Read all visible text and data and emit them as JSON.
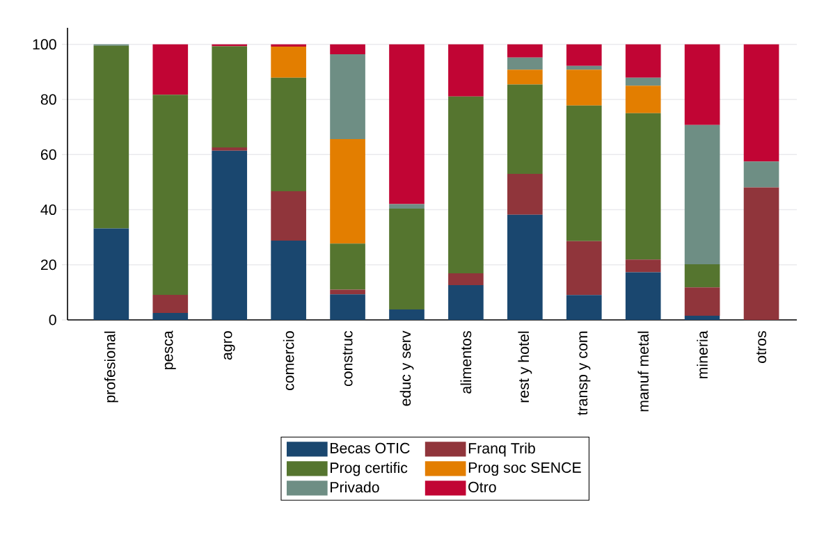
{
  "chart_data": {
    "type": "bar",
    "stacked": true,
    "categories": [
      "profesional",
      "pesca",
      "agro",
      "comercio",
      "construc",
      "educ y serv",
      "alimentos",
      "rest y hotel",
      "transp y com",
      "manuf metal",
      "mineria",
      "otros"
    ],
    "series": [
      {
        "name": "Becas OTIC",
        "color": "#1a476f",
        "values": [
          33.2,
          2.5,
          61.4,
          28.8,
          9.3,
          3.8,
          12.6,
          38.2,
          9.0,
          17.3,
          1.5,
          0
        ]
      },
      {
        "name": "Franq Trib",
        "color": "#90353b",
        "values": [
          0,
          6.6,
          1.2,
          17.9,
          1.7,
          0,
          4.3,
          14.8,
          19.6,
          4.6,
          10.3,
          48.1
        ]
      },
      {
        "name": "Prog certific",
        "color": "#55752f",
        "values": [
          66.3,
          72.6,
          36.7,
          41.2,
          16.7,
          36.6,
          64.2,
          32.4,
          49.2,
          53.1,
          8.4,
          0
        ]
      },
      {
        "name": "Prog soc SENCE",
        "color": "#e37e00",
        "values": [
          0,
          0,
          0,
          11.3,
          37.9,
          0,
          0,
          5.4,
          13.0,
          10.0,
          0,
          0
        ]
      },
      {
        "name": "Privado",
        "color": "#6e8e84",
        "values": [
          0.5,
          0,
          0,
          0,
          30.8,
          1.6,
          0,
          4.4,
          1.4,
          2.9,
          50.5,
          9.4
        ]
      },
      {
        "name": "Otro",
        "color": "#c10534",
        "values": [
          0,
          18.3,
          0.7,
          0.8,
          3.6,
          58.0,
          18.9,
          4.8,
          7.8,
          12.1,
          29.3,
          42.5
        ]
      }
    ],
    "ylim": [
      0,
      106
    ],
    "yticks": [
      0,
      20,
      40,
      60,
      80,
      100
    ],
    "grid": "y",
    "legend": "bottom"
  }
}
